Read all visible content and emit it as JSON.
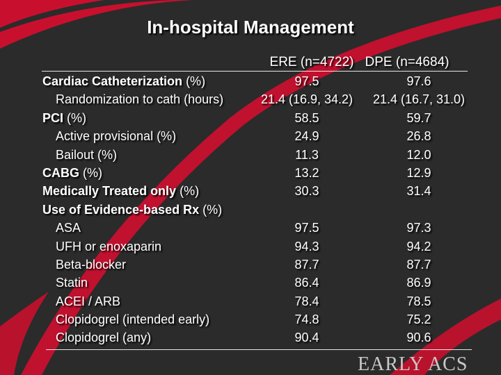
{
  "slide": {
    "title": "In-hospital Management",
    "columns": [
      "ERE (n=4722)",
      "DPE (n=4684)"
    ],
    "rows": [
      {
        "label_bold": "Cardiac Catheterization",
        "label_rest": " (%)",
        "indent": false,
        "ere": "97.5",
        "dpe": "97.6"
      },
      {
        "label_bold": "",
        "label_rest": "Randomization to cath (hours)",
        "indent": true,
        "ere": "21.4 (16.9, 34.2)",
        "dpe": "21.4 (16.7, 31.0)"
      },
      {
        "label_bold": "PCI",
        "label_rest": " (%)",
        "indent": false,
        "ere": "58.5",
        "dpe": "59.7"
      },
      {
        "label_bold": "",
        "label_rest": "Active provisional (%)",
        "indent": true,
        "ere": "24.9",
        "dpe": "26.8"
      },
      {
        "label_bold": "",
        "label_rest": "Bailout (%)",
        "indent": true,
        "ere": "11.3",
        "dpe": "12.0"
      },
      {
        "label_bold": "CABG",
        "label_rest": " (%)",
        "indent": false,
        "ere": "13.2",
        "dpe": "12.9"
      },
      {
        "label_bold": "Medically Treated only",
        "label_rest": " (%)",
        "indent": false,
        "ere": "30.3",
        "dpe": "31.4"
      },
      {
        "label_bold": "Use of Evidence-based Rx",
        "label_rest": " (%)",
        "indent": false,
        "ere": "",
        "dpe": ""
      },
      {
        "label_bold": "",
        "label_rest": "ASA",
        "indent": true,
        "ere": "97.5",
        "dpe": "97.3"
      },
      {
        "label_bold": "",
        "label_rest": "UFH or enoxaparin",
        "indent": true,
        "ere": "94.3",
        "dpe": "94.2"
      },
      {
        "label_bold": "",
        "label_rest": "Beta-blocker",
        "indent": true,
        "ere": "87.7",
        "dpe": "87.7"
      },
      {
        "label_bold": "",
        "label_rest": "Statin",
        "indent": true,
        "ere": "86.4",
        "dpe": "86.9"
      },
      {
        "label_bold": "",
        "label_rest": "ACEI / ARB",
        "indent": true,
        "ere": "78.4",
        "dpe": "78.5"
      },
      {
        "label_bold": "",
        "label_rest": "Clopidogrel (intended early)",
        "indent": true,
        "ere": "74.8",
        "dpe": "75.2"
      },
      {
        "label_bold": "",
        "label_rest": "Clopidogrel (any)",
        "indent": true,
        "ere": "90.4",
        "dpe": "90.6"
      }
    ],
    "logo_text": "EARLY ACS",
    "colors": {
      "background": "#2b2b2b",
      "swoosh": "#c8102e",
      "text": "#ffffff",
      "logo": "#c8c8c8"
    }
  }
}
